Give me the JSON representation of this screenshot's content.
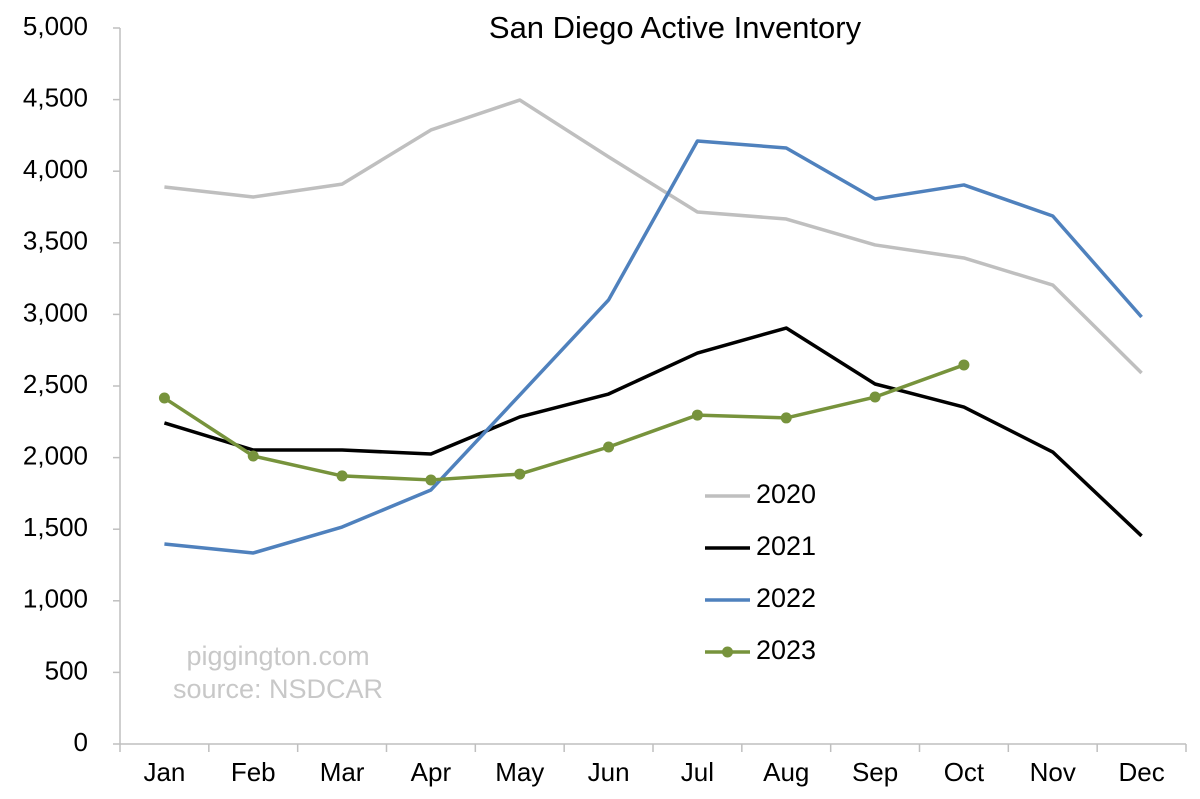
{
  "chart_data": {
    "type": "line",
    "title": "San Diego Active Inventory",
    "categories": [
      "Jan",
      "Feb",
      "Mar",
      "Apr",
      "May",
      "Jun",
      "Jul",
      "Aug",
      "Sep",
      "Oct",
      "Nov",
      "Dec"
    ],
    "series": [
      {
        "name": "2020",
        "color": "#bfbfbf",
        "values": [
          3890,
          3820,
          3910,
          4288,
          4497,
          4100,
          3715,
          3666,
          3485,
          3394,
          3205,
          2591
        ]
      },
      {
        "name": "2021",
        "color": "#000000",
        "values": [
          2242,
          2053,
          2053,
          2025,
          2284,
          2444,
          2730,
          2905,
          2514,
          2353,
          2039,
          1453
        ]
      },
      {
        "name": "2022",
        "color": "#4f81bd",
        "values": [
          1397,
          1334,
          1515,
          1774,
          2437,
          3101,
          4211,
          4162,
          3806,
          3904,
          3687,
          2982
        ]
      },
      {
        "name": "2023",
        "color": "#77933c",
        "marker": true,
        "values": [
          2416,
          2011,
          1872,
          1844,
          1885,
          2074,
          2297,
          2277,
          2423,
          2647,
          null,
          null
        ]
      }
    ],
    "ylim": [
      0,
      5000
    ],
    "yticks": [
      0,
      500,
      {
        "value": 1000,
        "label": "1,000"
      },
      {
        "value": 1500,
        "label": "1,500"
      },
      {
        "value": 2000,
        "label": "2,000"
      },
      {
        "value": 2500,
        "label": "2,500"
      },
      {
        "value": 3000,
        "label": "3,000"
      },
      {
        "value": 3500,
        "label": "3,500"
      },
      {
        "value": 4000,
        "label": "4,000"
      },
      {
        "value": 4500,
        "label": "4,500"
      },
      {
        "value": 5000,
        "label": "5,000"
      }
    ],
    "annotations": [
      "piggington.com",
      "source: NSDCAR"
    ]
  }
}
